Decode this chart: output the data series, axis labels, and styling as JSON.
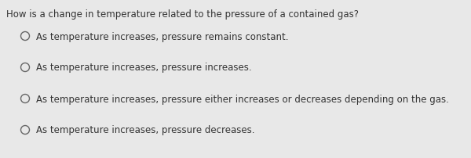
{
  "question": "How is a change in temperature related to the pressure of a contained gas?",
  "options": [
    "As temperature increases, pressure remains constant.",
    "As temperature increases, pressure increases.",
    "As temperature increases, pressure either increases or decreases depending on the gas.",
    "As temperature increases, pressure decreases."
  ],
  "background_color": "#e8e8e8",
  "text_color": "#333333",
  "question_fontsize": 8.5,
  "option_fontsize": 8.5,
  "circle_color": "#666666",
  "circle_linewidth": 1.0
}
